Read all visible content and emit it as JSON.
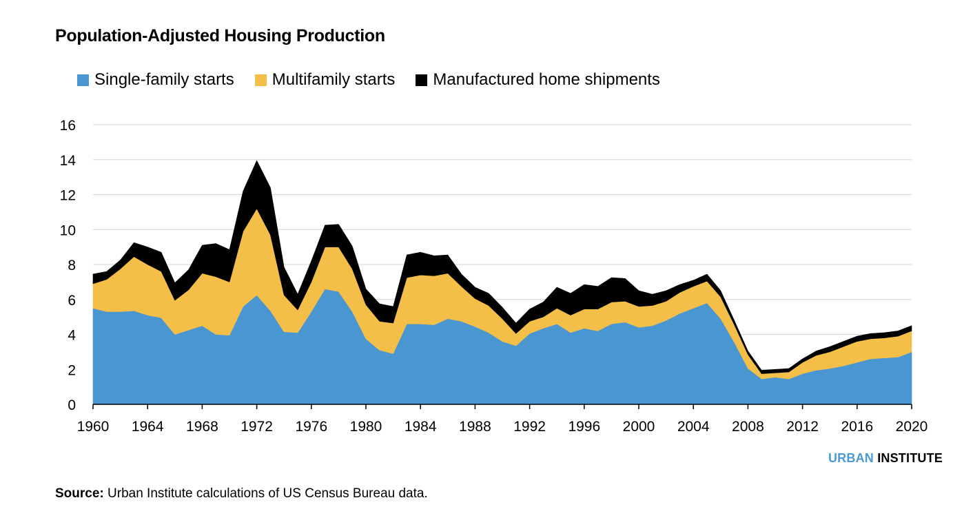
{
  "chart_data": {
    "type": "area",
    "stacked": true,
    "title": "Population-Adjusted Housing Production",
    "xlabel": "",
    "ylabel": "",
    "xlim": [
      1960,
      2020
    ],
    "ylim": [
      0,
      16
    ],
    "x_ticks": [
      1960,
      1964,
      1968,
      1972,
      1976,
      1980,
      1984,
      1988,
      1992,
      1996,
      2000,
      2004,
      2008,
      2012,
      2016,
      2020
    ],
    "y_ticks": [
      0,
      2,
      4,
      6,
      8,
      10,
      12,
      14,
      16
    ],
    "grid": "horizontal",
    "legend_position": "top-left",
    "x": [
      1960,
      1961,
      1962,
      1963,
      1964,
      1965,
      1966,
      1967,
      1968,
      1969,
      1970,
      1971,
      1972,
      1973,
      1974,
      1975,
      1976,
      1977,
      1978,
      1979,
      1980,
      1981,
      1982,
      1983,
      1984,
      1985,
      1986,
      1987,
      1988,
      1989,
      1990,
      1991,
      1992,
      1993,
      1994,
      1995,
      1996,
      1997,
      1998,
      1999,
      2000,
      2001,
      2002,
      2003,
      2004,
      2005,
      2006,
      2007,
      2008,
      2009,
      2010,
      2011,
      2012,
      2013,
      2014,
      2015,
      2016,
      2017,
      2018,
      2019,
      2020
    ],
    "series": [
      {
        "name": "Single-family starts",
        "color": "#4a96d1",
        "values": [
          5.5,
          5.3,
          5.3,
          5.35,
          5.1,
          4.95,
          4.0,
          4.25,
          4.5,
          4.0,
          3.95,
          5.6,
          6.25,
          5.35,
          4.15,
          4.1,
          5.3,
          6.6,
          6.45,
          5.3,
          3.75,
          3.1,
          2.9,
          4.6,
          4.6,
          4.55,
          4.9,
          4.75,
          4.45,
          4.1,
          3.6,
          3.35,
          4.05,
          4.35,
          4.6,
          4.1,
          4.35,
          4.2,
          4.6,
          4.7,
          4.4,
          4.5,
          4.8,
          5.2,
          5.5,
          5.8,
          4.9,
          3.55,
          2.05,
          1.45,
          1.55,
          1.45,
          1.75,
          1.95,
          2.05,
          2.2,
          2.4,
          2.6,
          2.65,
          2.7,
          3.0
        ]
      },
      {
        "name": "Multifamily starts",
        "color": "#f4bf48",
        "values": [
          1.4,
          1.85,
          2.45,
          3.1,
          2.9,
          2.65,
          1.95,
          2.3,
          3.0,
          3.3,
          3.05,
          4.3,
          4.95,
          4.35,
          2.1,
          1.3,
          1.7,
          2.4,
          2.55,
          2.45,
          1.95,
          1.65,
          1.75,
          2.65,
          2.8,
          2.8,
          2.6,
          2.0,
          1.6,
          1.55,
          1.3,
          0.7,
          0.7,
          0.65,
          0.9,
          1.0,
          1.1,
          1.25,
          1.25,
          1.2,
          1.2,
          1.15,
          1.1,
          1.2,
          1.25,
          1.25,
          1.25,
          1.0,
          0.8,
          0.3,
          0.25,
          0.4,
          0.65,
          0.85,
          0.95,
          1.1,
          1.2,
          1.15,
          1.15,
          1.2,
          1.2
        ]
      },
      {
        "name": "Manufactured home shipments",
        "color": "#000000",
        "values": [
          0.55,
          0.45,
          0.5,
          0.8,
          1.0,
          1.1,
          1.0,
          1.15,
          1.6,
          1.9,
          1.85,
          2.3,
          2.75,
          2.7,
          1.6,
          0.9,
          1.2,
          1.25,
          1.3,
          1.3,
          0.9,
          1.0,
          0.95,
          1.3,
          1.3,
          1.15,
          1.05,
          0.7,
          0.65,
          0.7,
          0.65,
          0.6,
          0.7,
          0.85,
          1.2,
          1.25,
          1.4,
          1.3,
          1.4,
          1.3,
          0.9,
          0.65,
          0.6,
          0.45,
          0.35,
          0.4,
          0.35,
          0.25,
          0.2,
          0.2,
          0.2,
          0.2,
          0.2,
          0.25,
          0.3,
          0.3,
          0.3,
          0.3,
          0.3,
          0.3,
          0.3
        ]
      }
    ]
  },
  "legend": {
    "items": [
      {
        "label": "Single-family starts",
        "color": "#4a96d1"
      },
      {
        "label": "Multifamily starts",
        "color": "#f4bf48"
      },
      {
        "label": "Manufactured home shipments",
        "color": "#000000"
      }
    ]
  },
  "branding": {
    "urban": "URBAN",
    "institute": "INSTITUTE"
  },
  "source": {
    "label": "Source:",
    "text": "Urban Institute calculations of US Census Bureau data."
  }
}
